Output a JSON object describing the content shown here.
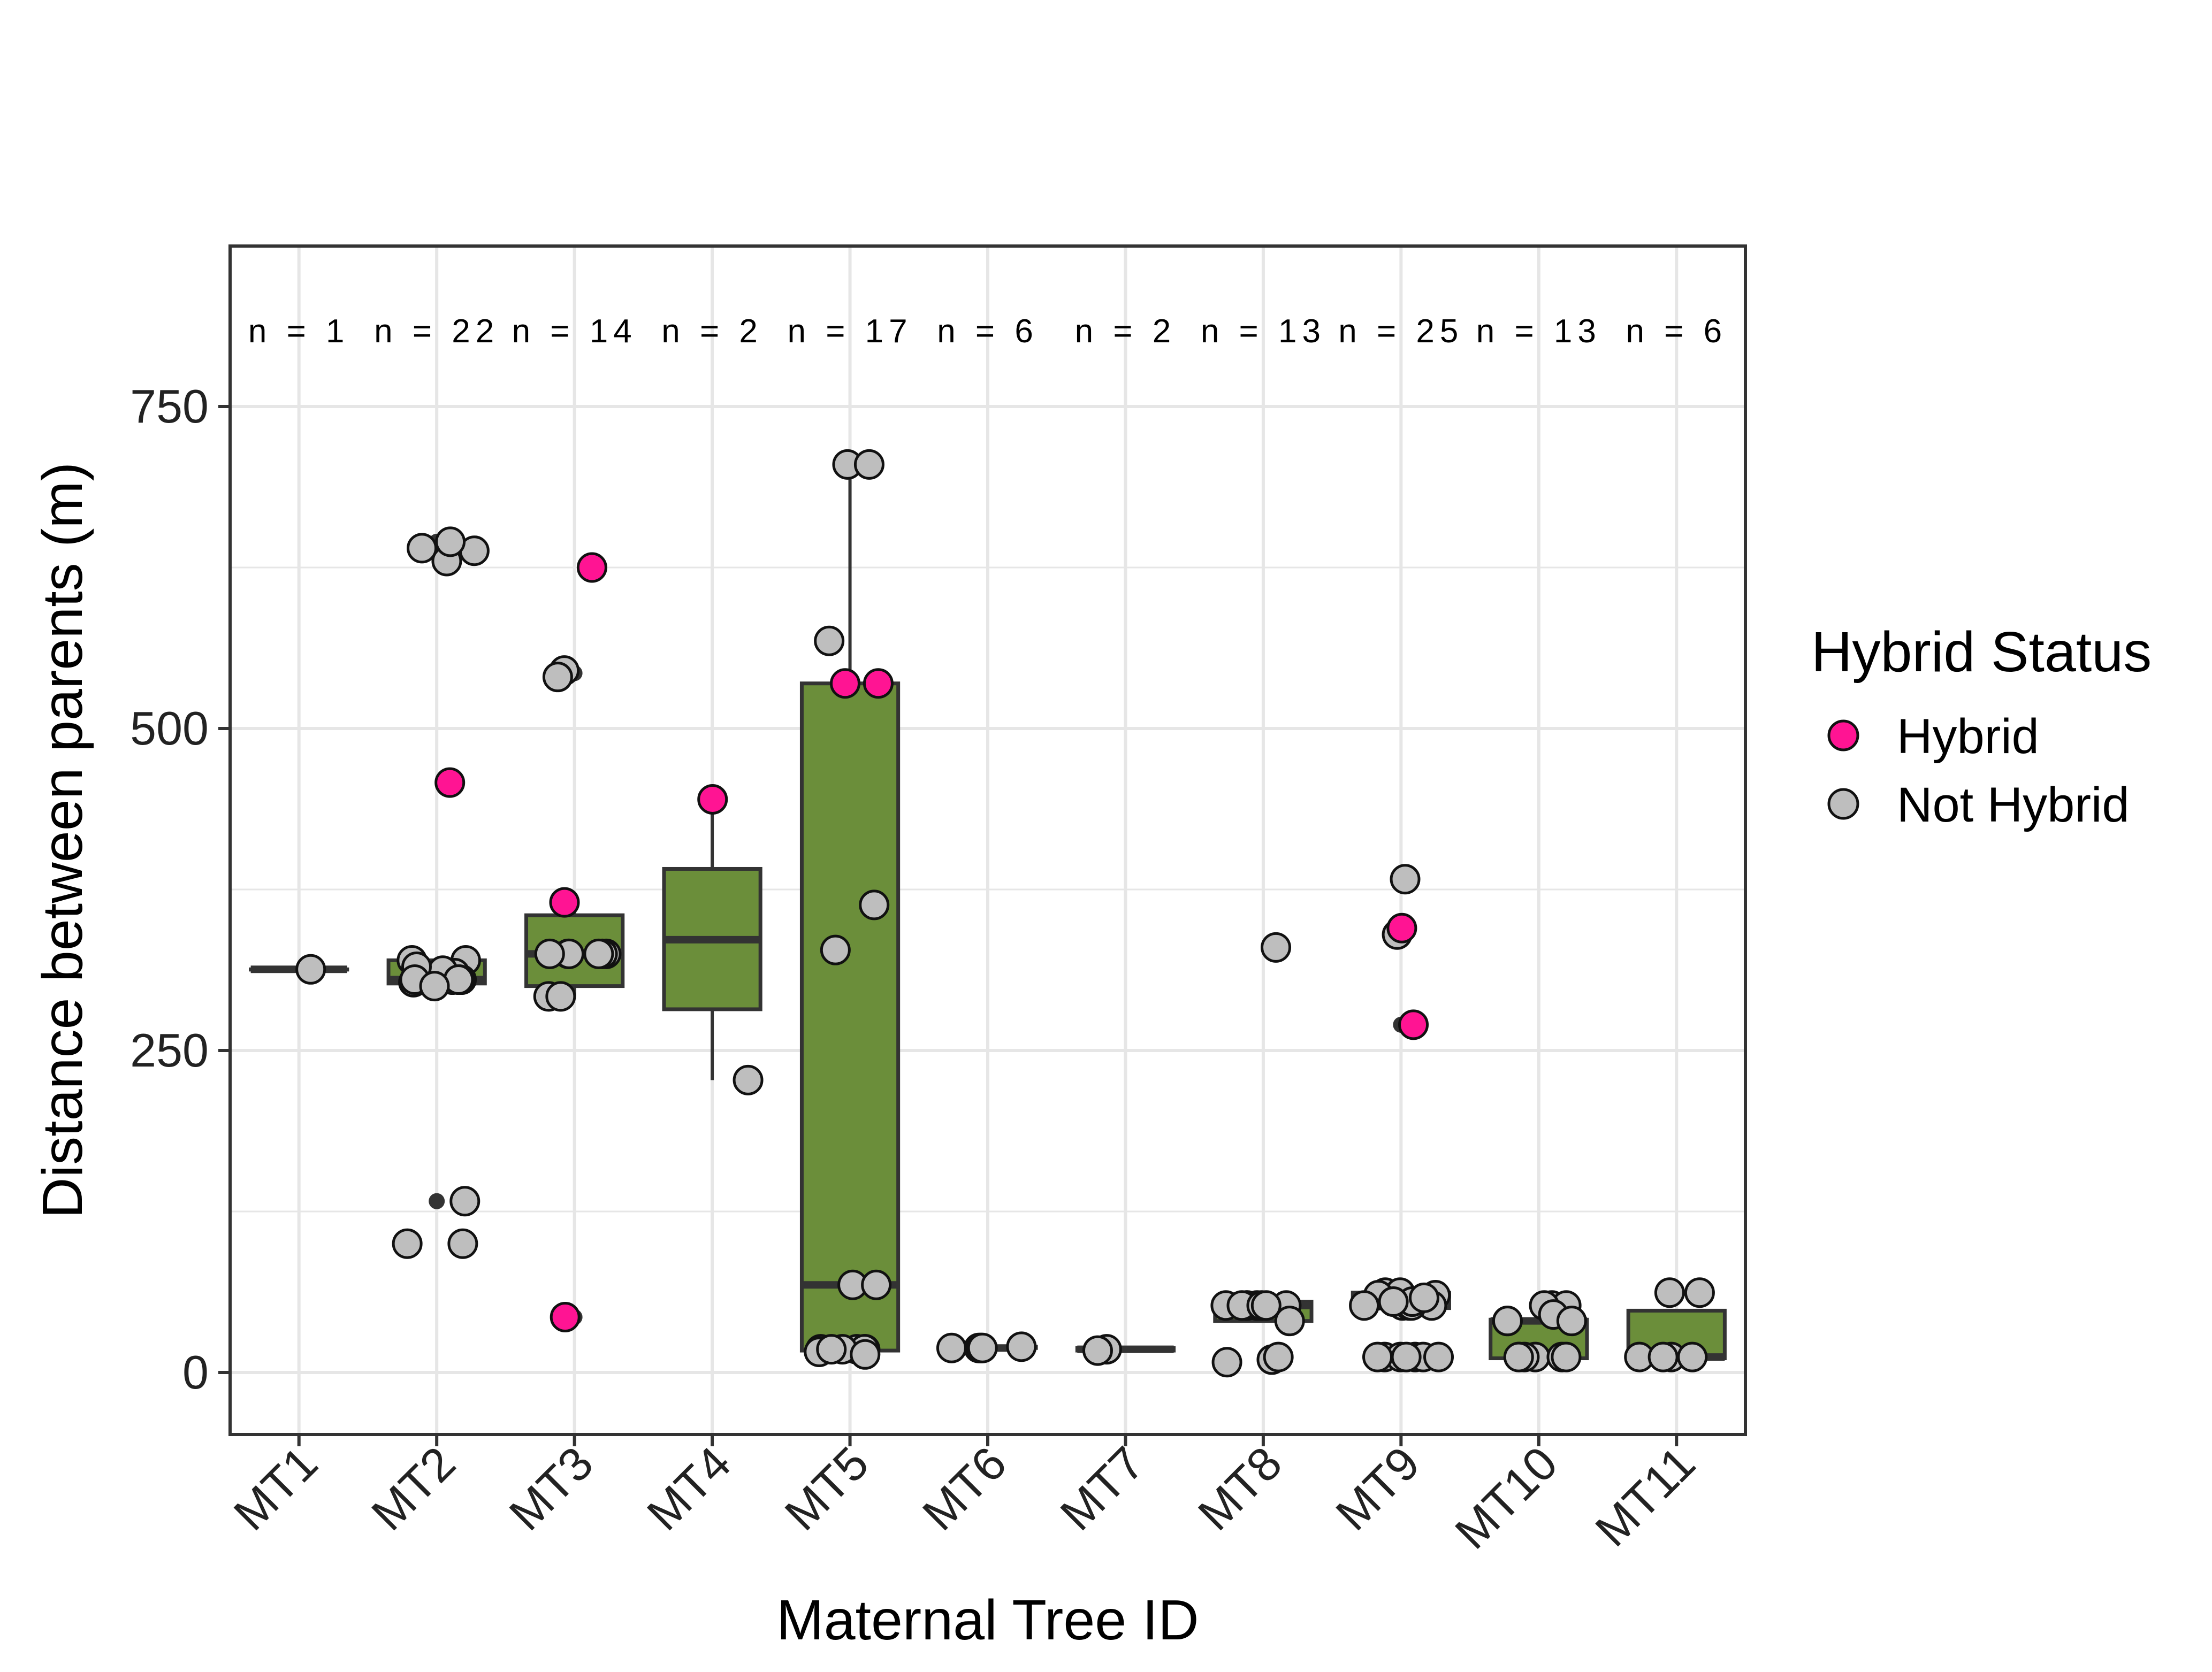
{
  "chart_data": {
    "type": "box",
    "xlabel": "Maternal Tree ID",
    "ylabel": "Distance between parents (m)",
    "ylim": [
      -50,
      870
    ],
    "yticks": [
      0,
      250,
      500,
      750
    ],
    "grid": true,
    "legend": {
      "title": "Hybrid Status",
      "placement": "right",
      "entries": [
        {
          "label": "Hybrid",
          "color": "#ff1493"
        },
        {
          "label": "Not Hybrid",
          "color": "#bebebe"
        }
      ]
    },
    "colors": {
      "box_fill": "#6b8e3a",
      "box_line": "#333333",
      "grid": "#e6e6e6",
      "hybrid": "#ff1493",
      "not_hybrid": "#bebebe"
    },
    "categories": [
      "MT1",
      "MT2",
      "MT3",
      "MT4",
      "MT5",
      "MT6",
      "MT7",
      "MT8",
      "MT9",
      "MT10",
      "MT11"
    ],
    "counts": [
      "n = 1",
      "n = 22",
      "n = 14",
      "n = 2",
      "n = 17",
      "n = 6",
      "n = 2",
      "n = 13",
      "n = 25",
      "n = 13",
      "n = 6"
    ],
    "boxes": [
      {
        "id": "MT1",
        "q1": 313,
        "median": 313,
        "q3": 313,
        "whisker_low": 313,
        "whisker_high": 313
      },
      {
        "id": "MT2",
        "q1": 302,
        "median": 305,
        "q3": 320,
        "whisker_low": 300,
        "whisker_high": 322
      },
      {
        "id": "MT3",
        "q1": 300,
        "median": 325,
        "q3": 355,
        "whisker_low": 292,
        "whisker_high": 362
      },
      {
        "id": "MT4",
        "q1": 282,
        "median": 336,
        "q3": 391,
        "whisker_low": 227,
        "whisker_high": 445
      },
      {
        "id": "MT5",
        "q1": 17,
        "median": 68,
        "q3": 535,
        "whisker_low": 13,
        "whisker_high": 705
      },
      {
        "id": "MT6",
        "q1": 19,
        "median": 19,
        "q3": 20,
        "whisker_low": 18,
        "whisker_high": 21
      },
      {
        "id": "MT7",
        "q1": 17,
        "median": 18,
        "q3": 19,
        "whisker_low": 17,
        "whisker_high": 19
      },
      {
        "id": "MT8",
        "q1": 40,
        "median": 52,
        "q3": 55,
        "whisker_low": 40,
        "whisker_high": 55
      },
      {
        "id": "MT9",
        "q1": 50,
        "median": 55,
        "q3": 62,
        "whisker_low": 50,
        "whisker_high": 62
      },
      {
        "id": "MT10",
        "q1": 11,
        "median": 40,
        "q3": 41,
        "whisker_low": 11,
        "whisker_high": 41
      },
      {
        "id": "MT11",
        "q1": 11,
        "median": 12,
        "q3": 48,
        "whisker_low": 11,
        "whisker_high": 48
      }
    ],
    "outliers": [
      {
        "group": "MT2",
        "y": 645
      },
      {
        "group": "MT2",
        "y": 133
      },
      {
        "group": "MT3",
        "y": 543
      },
      {
        "group": "MT3",
        "y": 43
      },
      {
        "group": "MT9",
        "y": 342
      },
      {
        "group": "MT9",
        "y": 270
      }
    ],
    "points": [
      {
        "group": "MT1",
        "y": 313,
        "hybrid": false
      },
      {
        "group": "MT2",
        "y": 640,
        "hybrid": false
      },
      {
        "group": "MT2",
        "y": 630,
        "hybrid": false
      },
      {
        "group": "MT2",
        "y": 638,
        "hybrid": false
      },
      {
        "group": "MT2",
        "y": 645,
        "hybrid": false
      },
      {
        "group": "MT2",
        "y": 458,
        "hybrid": true
      },
      {
        "group": "MT2",
        "y": 320,
        "hybrid": false
      },
      {
        "group": "MT2",
        "y": 320,
        "hybrid": false
      },
      {
        "group": "MT2",
        "y": 305,
        "hybrid": false
      },
      {
        "group": "MT2",
        "y": 305,
        "hybrid": false
      },
      {
        "group": "MT2",
        "y": 310,
        "hybrid": false
      },
      {
        "group": "MT2",
        "y": 305,
        "hybrid": false
      },
      {
        "group": "MT2",
        "y": 305,
        "hybrid": false
      },
      {
        "group": "MT2",
        "y": 303,
        "hybrid": false
      },
      {
        "group": "MT2",
        "y": 312,
        "hybrid": false
      },
      {
        "group": "MT2",
        "y": 315,
        "hybrid": false
      },
      {
        "group": "MT2",
        "y": 305,
        "hybrid": false
      },
      {
        "group": "MT2",
        "y": 305,
        "hybrid": false
      },
      {
        "group": "MT2",
        "y": 133,
        "hybrid": false
      },
      {
        "group": "MT2",
        "y": 100,
        "hybrid": false
      },
      {
        "group": "MT2",
        "y": 100,
        "hybrid": false
      },
      {
        "group": "MT2",
        "y": 300,
        "hybrid": false
      },
      {
        "group": "MT3",
        "y": 625,
        "hybrid": true
      },
      {
        "group": "MT3",
        "y": 545,
        "hybrid": false
      },
      {
        "group": "MT3",
        "y": 540,
        "hybrid": false
      },
      {
        "group": "MT3",
        "y": 365,
        "hybrid": true
      },
      {
        "group": "MT3",
        "y": 325,
        "hybrid": false
      },
      {
        "group": "MT3",
        "y": 325,
        "hybrid": false
      },
      {
        "group": "MT3",
        "y": 325,
        "hybrid": false
      },
      {
        "group": "MT3",
        "y": 325,
        "hybrid": false
      },
      {
        "group": "MT3",
        "y": 325,
        "hybrid": false
      },
      {
        "group": "MT3",
        "y": 325,
        "hybrid": false
      },
      {
        "group": "MT3",
        "y": 292,
        "hybrid": false
      },
      {
        "group": "MT3",
        "y": 292,
        "hybrid": false
      },
      {
        "group": "MT3",
        "y": 43,
        "hybrid": true
      },
      {
        "group": "MT4",
        "y": 445,
        "hybrid": true
      },
      {
        "group": "MT4",
        "y": 227,
        "hybrid": false
      },
      {
        "group": "MT5",
        "y": 705,
        "hybrid": false
      },
      {
        "group": "MT5",
        "y": 705,
        "hybrid": false
      },
      {
        "group": "MT5",
        "y": 568,
        "hybrid": false
      },
      {
        "group": "MT5",
        "y": 535,
        "hybrid": true
      },
      {
        "group": "MT5",
        "y": 535,
        "hybrid": true
      },
      {
        "group": "MT5",
        "y": 363,
        "hybrid": false
      },
      {
        "group": "MT5",
        "y": 328,
        "hybrid": false
      },
      {
        "group": "MT5",
        "y": 68,
        "hybrid": false
      },
      {
        "group": "MT5",
        "y": 68,
        "hybrid": false
      },
      {
        "group": "MT5",
        "y": 18,
        "hybrid": false
      },
      {
        "group": "MT5",
        "y": 18,
        "hybrid": false
      },
      {
        "group": "MT5",
        "y": 18,
        "hybrid": false
      },
      {
        "group": "MT5",
        "y": 16,
        "hybrid": false
      },
      {
        "group": "MT5",
        "y": 18,
        "hybrid": false
      },
      {
        "group": "MT5",
        "y": 18,
        "hybrid": false
      },
      {
        "group": "MT5",
        "y": 14,
        "hybrid": false
      },
      {
        "group": "MT5",
        "y": 18,
        "hybrid": false
      },
      {
        "group": "MT6",
        "y": 19,
        "hybrid": false
      },
      {
        "group": "MT6",
        "y": 19,
        "hybrid": false
      },
      {
        "group": "MT6",
        "y": 19,
        "hybrid": false
      },
      {
        "group": "MT6",
        "y": 20,
        "hybrid": false
      },
      {
        "group": "MT6",
        "y": 19,
        "hybrid": false
      },
      {
        "group": "MT6",
        "y": 19,
        "hybrid": false
      },
      {
        "group": "MT7",
        "y": 18,
        "hybrid": false
      },
      {
        "group": "MT7",
        "y": 17,
        "hybrid": false
      },
      {
        "group": "MT8",
        "y": 330,
        "hybrid": false
      },
      {
        "group": "MT8",
        "y": 52,
        "hybrid": false
      },
      {
        "group": "MT8",
        "y": 52,
        "hybrid": false
      },
      {
        "group": "MT8",
        "y": 52,
        "hybrid": false
      },
      {
        "group": "MT8",
        "y": 52,
        "hybrid": false
      },
      {
        "group": "MT8",
        "y": 52,
        "hybrid": false
      },
      {
        "group": "MT8",
        "y": 52,
        "hybrid": false
      },
      {
        "group": "MT8",
        "y": 52,
        "hybrid": false
      },
      {
        "group": "MT8",
        "y": 52,
        "hybrid": false
      },
      {
        "group": "MT8",
        "y": 40,
        "hybrid": false
      },
      {
        "group": "MT8",
        "y": 10,
        "hybrid": false
      },
      {
        "group": "MT8",
        "y": 12,
        "hybrid": false
      },
      {
        "group": "MT8",
        "y": 8,
        "hybrid": false
      },
      {
        "group": "MT9",
        "y": 383,
        "hybrid": false
      },
      {
        "group": "MT9",
        "y": 340,
        "hybrid": false
      },
      {
        "group": "MT9",
        "y": 345,
        "hybrid": true
      },
      {
        "group": "MT9",
        "y": 270,
        "hybrid": true
      },
      {
        "group": "MT9",
        "y": 62,
        "hybrid": false
      },
      {
        "group": "MT9",
        "y": 62,
        "hybrid": false
      },
      {
        "group": "MT9",
        "y": 60,
        "hybrid": false
      },
      {
        "group": "MT9",
        "y": 60,
        "hybrid": false
      },
      {
        "group": "MT9",
        "y": 52,
        "hybrid": false
      },
      {
        "group": "MT9",
        "y": 52,
        "hybrid": false
      },
      {
        "group": "MT9",
        "y": 52,
        "hybrid": false
      },
      {
        "group": "MT9",
        "y": 52,
        "hybrid": false
      },
      {
        "group": "MT9",
        "y": 52,
        "hybrid": false
      },
      {
        "group": "MT9",
        "y": 55,
        "hybrid": false
      },
      {
        "group": "MT9",
        "y": 55,
        "hybrid": false
      },
      {
        "group": "MT9",
        "y": 58,
        "hybrid": false
      },
      {
        "group": "MT9",
        "y": 12,
        "hybrid": false
      },
      {
        "group": "MT9",
        "y": 12,
        "hybrid": false
      },
      {
        "group": "MT9",
        "y": 12,
        "hybrid": false
      },
      {
        "group": "MT9",
        "y": 12,
        "hybrid": false
      },
      {
        "group": "MT9",
        "y": 12,
        "hybrid": false
      },
      {
        "group": "MT9",
        "y": 12,
        "hybrid": false
      },
      {
        "group": "MT9",
        "y": 12,
        "hybrid": false
      },
      {
        "group": "MT10",
        "y": 52,
        "hybrid": false
      },
      {
        "group": "MT10",
        "y": 52,
        "hybrid": false
      },
      {
        "group": "MT10",
        "y": 52,
        "hybrid": false
      },
      {
        "group": "MT10",
        "y": 45,
        "hybrid": false
      },
      {
        "group": "MT10",
        "y": 40,
        "hybrid": false
      },
      {
        "group": "MT10",
        "y": 40,
        "hybrid": false
      },
      {
        "group": "MT10",
        "y": 40,
        "hybrid": false
      },
      {
        "group": "MT10",
        "y": 12,
        "hybrid": false
      },
      {
        "group": "MT10",
        "y": 12,
        "hybrid": false
      },
      {
        "group": "MT10",
        "y": 12,
        "hybrid": false
      },
      {
        "group": "MT10",
        "y": 12,
        "hybrid": false
      },
      {
        "group": "MT10",
        "y": 12,
        "hybrid": false
      },
      {
        "group": "MT10",
        "y": 12,
        "hybrid": false
      },
      {
        "group": "MT11",
        "y": 62,
        "hybrid": false
      },
      {
        "group": "MT11",
        "y": 62,
        "hybrid": false
      },
      {
        "group": "MT11",
        "y": 12,
        "hybrid": false
      },
      {
        "group": "MT11",
        "y": 12,
        "hybrid": false
      },
      {
        "group": "MT11",
        "y": 12,
        "hybrid": false
      },
      {
        "group": "MT11",
        "y": 12,
        "hybrid": false
      }
    ]
  }
}
